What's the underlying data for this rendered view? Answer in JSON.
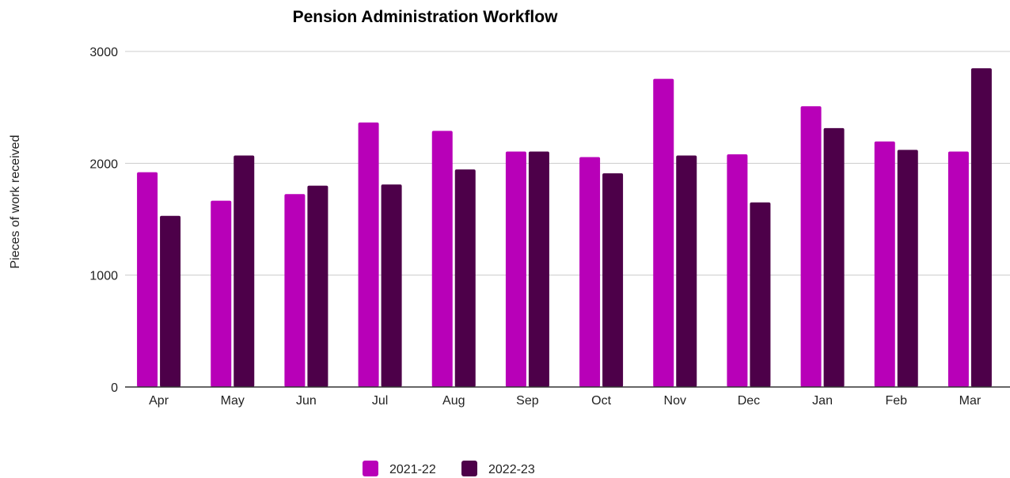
{
  "chart_data": {
    "type": "bar",
    "title": "Pension Administration Workflow",
    "xlabel": "",
    "ylabel": "Pieces of work received",
    "categories": [
      "Apr",
      "May",
      "Jun",
      "Jul",
      "Aug",
      "Sep",
      "Oct",
      "Nov",
      "Dec",
      "Jan",
      "Feb",
      "Mar"
    ],
    "series": [
      {
        "name": "2021-22",
        "color": "#b800b8",
        "values": [
          1920,
          1665,
          1725,
          2365,
          2290,
          2105,
          2055,
          2755,
          2080,
          2510,
          2195,
          2105
        ]
      },
      {
        "name": "2022-23",
        "color": "#4d0049",
        "values": [
          1530,
          2070,
          1800,
          1810,
          1945,
          2105,
          1910,
          2070,
          1650,
          2315,
          2120,
          2850
        ]
      }
    ],
    "ylim": [
      0,
      3000
    ],
    "yticks": [
      "0",
      "1000",
      "2000",
      "3000"
    ],
    "grid": true,
    "legend_position": "bottom"
  }
}
